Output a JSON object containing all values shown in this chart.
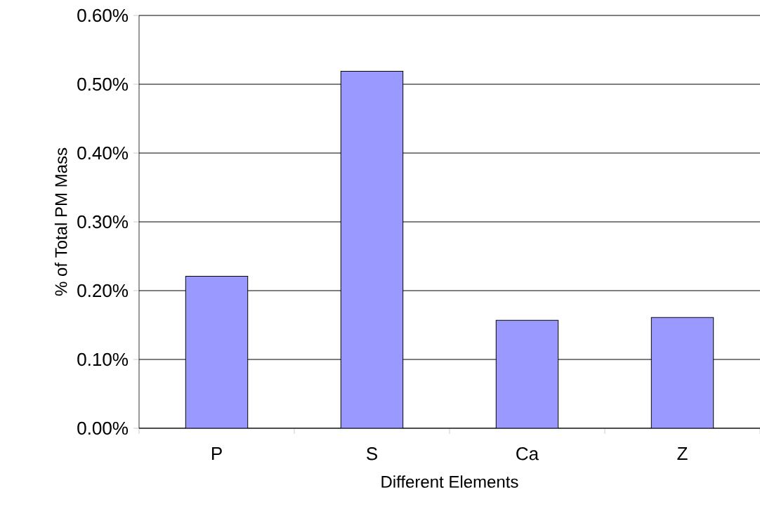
{
  "chart_data": {
    "type": "bar",
    "xlabel": "Different Elements",
    "ylabel": "% of Total PM Mass",
    "categories": [
      "P",
      "S",
      "Ca",
      "Z"
    ],
    "values": [
      0.221,
      0.519,
      0.157,
      0.161
    ],
    "color": "#9999ff",
    "ylim": [
      0,
      0.6
    ],
    "yticks": [
      {
        "value": 0,
        "label": "0.00%"
      },
      {
        "value": 0.1,
        "label": "0.10%"
      },
      {
        "value": 0.2,
        "label": "0.20%"
      },
      {
        "value": 0.3,
        "label": "0.30%"
      },
      {
        "value": 0.4,
        "label": "0.40%"
      },
      {
        "value": 0.5,
        "label": "0.50%"
      },
      {
        "value": 0.6,
        "label": "0.60%"
      }
    ],
    "grid": "y"
  }
}
